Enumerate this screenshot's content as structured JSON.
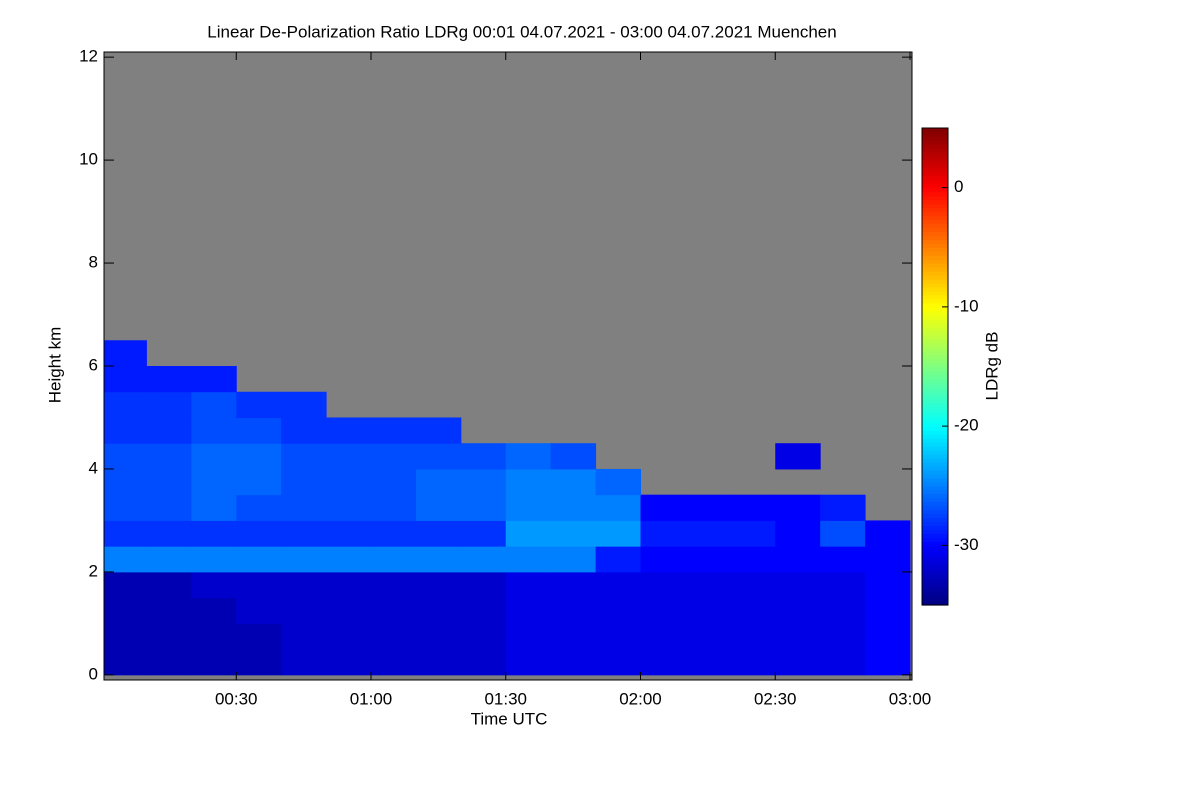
{
  "chart_data": {
    "type": "heatmap",
    "title": "Linear De-Polarization Ratio LDRg   00:01 04.07.2021 - 03:00 04.07.2021 Muenchen",
    "xlabel": "Time UTC",
    "ylabel": "Height km",
    "colorbar_label": "LDRg dB",
    "xlim": [
      1,
      180
    ],
    "ylim": [
      -0.1,
      12.1
    ],
    "xticks": [
      {
        "value": 30,
        "label": "00:30"
      },
      {
        "value": 60,
        "label": "01:00"
      },
      {
        "value": 90,
        "label": "01:30"
      },
      {
        "value": 120,
        "label": "02:00"
      },
      {
        "value": 150,
        "label": "02:30"
      },
      {
        "value": 180,
        "label": "03:00"
      }
    ],
    "yticks": [
      0,
      2,
      4,
      6,
      8,
      10,
      12
    ],
    "clim": [
      -35,
      5
    ],
    "cticks": [
      0,
      -10,
      -20,
      -30
    ],
    "colormap": "jet",
    "missing_color": "#808080",
    "xbins": [
      0,
      10,
      20,
      30,
      40,
      50,
      60,
      70,
      80,
      90,
      100,
      110,
      120,
      130,
      140,
      150,
      160,
      170,
      180
    ],
    "ybins": [
      0,
      0.5,
      1,
      1.5,
      2,
      2.5,
      3,
      3.5,
      4,
      4.5,
      5,
      5.5,
      6,
      6.5
    ],
    "z": [
      [
        -33,
        -33,
        -33,
        -33,
        -32,
        -32,
        -32,
        -32,
        -32,
        -31,
        -31,
        -31,
        -31,
        -31,
        -31,
        -31,
        -31,
        -30
      ],
      [
        -33,
        -33,
        -33,
        -33,
        -32,
        -32,
        -32,
        -32,
        -32,
        -31,
        -31,
        -31,
        -31,
        -31,
        -31,
        -31,
        -31,
        -30
      ],
      [
        -33,
        -33,
        -33,
        -32,
        -32,
        -32,
        -32,
        -32,
        -32,
        -31,
        -31,
        -31,
        -31,
        -31,
        -31,
        -31,
        -31,
        -30
      ],
      [
        -33,
        -33,
        -32,
        -32,
        -32,
        -32,
        -32,
        -32,
        -32,
        -31,
        -31,
        -31,
        -31,
        -31,
        -31,
        -31,
        -31,
        -30
      ],
      [
        -25,
        -25,
        -25,
        -25,
        -25,
        -25,
        -25,
        -25,
        -25,
        -25,
        -25,
        -29,
        -30,
        -30,
        -30,
        -30,
        -30,
        -30
      ],
      [
        -28,
        -28,
        -28,
        -28,
        -28,
        -28,
        -28,
        -28,
        -28,
        -24,
        -24,
        -24,
        -29,
        -29,
        -29,
        -30,
        -27,
        -30
      ],
      [
        -27,
        -27,
        -26,
        -27,
        -27,
        -27,
        -27,
        -26,
        -26,
        -25,
        -25,
        -25,
        -30,
        -30,
        -30,
        -30,
        -29,
        null
      ],
      [
        -27,
        -27,
        -26,
        -26,
        -27,
        -27,
        -27,
        -26,
        -26,
        -25,
        -25,
        -26,
        null,
        null,
        null,
        null,
        null,
        null
      ],
      [
        -27,
        -27,
        -26,
        -26,
        -27,
        -27,
        -27,
        -27,
        -27,
        -26,
        -27,
        null,
        null,
        null,
        null,
        -31,
        null,
        null
      ],
      [
        -28,
        -28,
        -27,
        -27,
        -28,
        -28,
        -28,
        -28,
        null,
        null,
        null,
        null,
        null,
        null,
        null,
        null,
        null,
        null
      ],
      [
        -28,
        -28,
        -27,
        -28,
        -28,
        null,
        null,
        null,
        null,
        null,
        null,
        null,
        null,
        null,
        null,
        null,
        null,
        null
      ],
      [
        -29,
        -29,
        -29,
        null,
        null,
        null,
        null,
        null,
        null,
        null,
        null,
        null,
        null,
        null,
        null,
        null,
        null,
        null
      ],
      [
        -29,
        null,
        null,
        null,
        null,
        null,
        null,
        null,
        null,
        null,
        null,
        null,
        null,
        null,
        null,
        null,
        null,
        null
      ]
    ]
  }
}
